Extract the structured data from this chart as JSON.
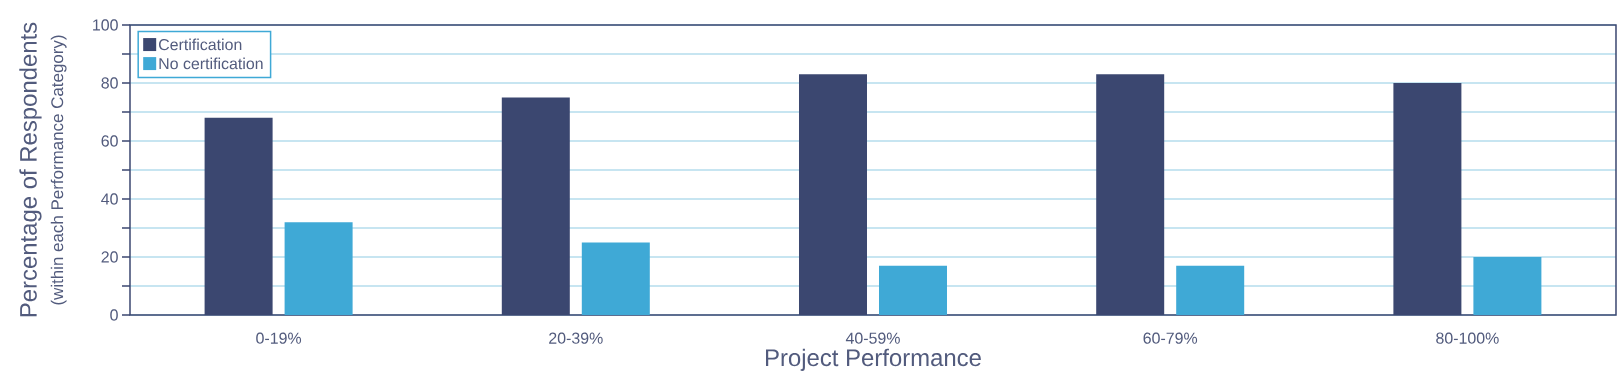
{
  "chart_data": {
    "type": "bar",
    "xlabel": "Project Performance",
    "ylabel": "Percentage of Respondents",
    "annotations": [
      "(within each Performance Category)"
    ],
    "categories": [
      "0-19%",
      "20-39%",
      "40-59%",
      "60-79%",
      "80-100%"
    ],
    "series": [
      {
        "name": "Certification",
        "color": "#3b4770",
        "values": [
          68,
          75,
          83,
          83,
          80
        ]
      },
      {
        "name": "No certification",
        "color": "#3fa9d6",
        "values": [
          32,
          25,
          17,
          17,
          20
        ]
      }
    ],
    "ylim": [
      0,
      100
    ],
    "yticks": [
      0,
      {
        "value": 10,
        "label": null
      },
      20,
      {
        "value": 30,
        "label": null
      },
      40,
      {
        "value": 50,
        "label": null
      },
      60,
      {
        "value": 70,
        "label": null
      },
      80,
      {
        "value": 90,
        "label": null
      },
      100
    ],
    "grid": "y",
    "legend": "top left"
  }
}
